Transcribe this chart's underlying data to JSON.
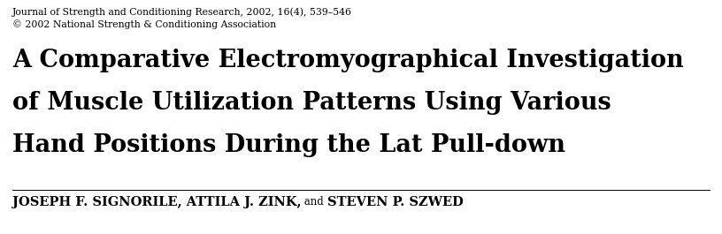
{
  "journal_line1": "Journal of Strength and Conditioning Research, 2002, 16(4), 539–546",
  "journal_line2": "© 2002 National Strength & Conditioning Association",
  "title_line1": "A Comparative Electromyographical Investigation",
  "title_line2": "of Muscle Utilization Patterns Using Various",
  "title_line3": "Hand Positions During the Lat Pull-down",
  "authors_bold1": "JOSEPH F. SIGNORILE, ATTILA J. ZINK,",
  "authors_and": " and ",
  "authors_bold2": "STEVEN P. SZWED",
  "bg_color": "#ffffff",
  "text_color": "#000000",
  "journal_fontsize": 7.8,
  "title_fontsize": 19.5,
  "author_fontsize": 10.5,
  "author_and_fontsize": 8.5
}
